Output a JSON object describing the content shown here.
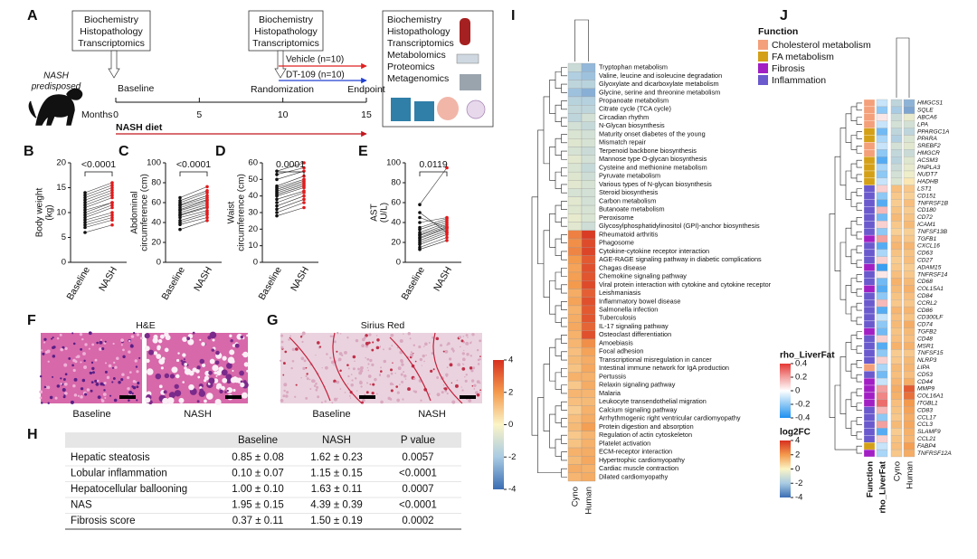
{
  "panel_a": {
    "label": "A",
    "box1": [
      "Biochemistry",
      "Histopathology",
      "Transcriptomics"
    ],
    "box2": [
      "Biochemistry",
      "Histopathology",
      "Transcriptomics"
    ],
    "box3": [
      "Biochemistry",
      "Histopathology",
      "Transcriptomics",
      "Metabolomics",
      "Proteomics",
      "Metagenomics"
    ],
    "subject": [
      "NASH",
      "predisposed"
    ],
    "baseline": "Baseline",
    "randomization": "Randomization",
    "endpoint": "Endpoint",
    "vehicle": {
      "text": "Vehicle (n=10)",
      "color": "#e02020"
    },
    "dt109": {
      "text": "DT-109 (n=10)",
      "color": "#2040d0"
    },
    "timeline": {
      "label": "Months",
      "lim": [
        0,
        15
      ],
      "ticks": [
        0,
        5,
        10,
        15
      ]
    },
    "diet": {
      "text": "NASH diet",
      "color": "#c0181e"
    }
  },
  "paired_colors": [
    "#111111",
    "#e31a1c"
  ],
  "paired_panels": [
    {
      "label": "B",
      "ylabel": [
        "Body weight",
        "(kg)"
      ],
      "ylim": [
        0,
        20
      ],
      "yticks": [
        0,
        5,
        10,
        15,
        20
      ],
      "groups": [
        "Baseline",
        "NASH"
      ],
      "p": "<0.0001",
      "baseline": [
        6,
        7,
        7.5,
        8,
        8.5,
        9,
        9.5,
        10,
        10.5,
        11,
        11.5,
        12,
        12.5,
        13,
        13.5,
        14
      ],
      "nash": [
        7.5,
        8.5,
        9,
        9.5,
        10,
        11,
        11.5,
        12,
        12,
        13,
        13.5,
        14,
        14.5,
        15,
        15.5,
        16
      ]
    },
    {
      "label": "C",
      "ylabel": [
        "Abdominal",
        "circumference (cm)"
      ],
      "ylim": [
        0,
        100
      ],
      "yticks": [
        0,
        20,
        40,
        60,
        80,
        100
      ],
      "groups": [
        "Baseline",
        "NASH"
      ],
      "p": "<0.0001",
      "baseline": [
        33,
        38,
        40,
        42,
        45,
        47,
        48,
        50,
        52,
        53,
        55,
        57,
        58,
        60,
        62,
        65
      ],
      "nash": [
        42,
        45,
        48,
        50,
        52,
        55,
        56,
        58,
        60,
        62,
        63,
        65,
        67,
        70,
        72,
        76
      ]
    },
    {
      "label": "D",
      "ylabel": [
        "Waist",
        "circumference (cm)"
      ],
      "ylim": [
        0,
        60
      ],
      "yticks": [
        0,
        10,
        20,
        30,
        40,
        50,
        60
      ],
      "groups": [
        "Baseline",
        "NASH"
      ],
      "p": "0.0001",
      "baseline": [
        28,
        30,
        32,
        34,
        36,
        38,
        40,
        41,
        42,
        43,
        44,
        45,
        46,
        50,
        53,
        55
      ],
      "nash": [
        33,
        36,
        38,
        40,
        42,
        43,
        45,
        46,
        47,
        48,
        49,
        50,
        52,
        55,
        57,
        60
      ]
    },
    {
      "label": "E",
      "ylabel": [
        "AST",
        "(U/L)"
      ],
      "ylim": [
        0,
        100
      ],
      "yticks": [
        0,
        20,
        40,
        60,
        80,
        100
      ],
      "groups": [
        "Baseline",
        "NASH"
      ],
      "p": "0.0119",
      "baseline": [
        13,
        15,
        18,
        20,
        22,
        24,
        25,
        27,
        28,
        30,
        33,
        35,
        40,
        45,
        50,
        58
      ],
      "nash": [
        22,
        25,
        28,
        30,
        32,
        34,
        35,
        36,
        38,
        40,
        42,
        44,
        45,
        35,
        30,
        95
      ]
    }
  ],
  "histology": [
    {
      "label": "F",
      "stain": "H&E",
      "images": [
        "Baseline",
        "NASH"
      ]
    },
    {
      "label": "G",
      "stain": "Sirius Red",
      "images": [
        "Baseline",
        "NASH"
      ]
    }
  ],
  "table": {
    "label": "H",
    "headers": [
      "Baseline",
      "NASH",
      "P value"
    ],
    "rows": [
      [
        "Hepatic steatosis",
        "0.85 ± 0.08",
        "1.62 ± 0.23",
        "0.0057"
      ],
      [
        "Lobular inflammation",
        "0.10 ± 0.07",
        "1.15 ± 0.15",
        "<0.0001"
      ],
      [
        "Hepatocellular ballooning",
        "1.00 ± 0.10",
        "1.63 ± 0.11",
        "0.0007"
      ],
      [
        "NAS",
        "1.95 ± 0.15",
        "4.39 ± 0.39",
        "<0.0001"
      ],
      [
        "Fibrosis score",
        "0.37 ± 0.11",
        "1.50 ± 0.19",
        "0.0002"
      ]
    ]
  },
  "panel_i": {
    "label": "I",
    "pathways": [
      "Tryptophan metabolism",
      "Valine, leucine and isoleucine degradation",
      "Glyoxylate and dicarboxylate metabolism",
      "Glycine, serine and threonine metabolism",
      "Propanoate metabolism",
      "Citrate cycle (TCA cycle)",
      "Circadian rhythm",
      "N-Glycan biosynthesis",
      "Maturity onset diabetes of the young",
      "Mismatch repair",
      "Terpenoid backbone biosynthesis",
      "Mannose type O-glycan biosynthesis",
      "Cysteine and methionine metabolism",
      "Pyruvate metabolism",
      "Various types of N-glycan biosynthesis",
      "Steroid biosynthesis",
      "Carbon metabolism",
      "Butanoate metabolism",
      "Peroxisome",
      "Glycosylphosphatidylinositol (GPI)-anchor biosynthesis",
      "Rheumatoid arthritis",
      "Phagosome",
      "Cytokine-cytokine receptor interaction",
      "AGE-RAGE signaling pathway in diabetic complications",
      "Chagas disease",
      "Chemokine signaling pathway",
      "Viral protein interaction with cytokine and cytokine receptor",
      "Leishmaniasis",
      "Inflammatory bowel disease",
      "Salmonella infection",
      "Tuberculosis",
      "IL-17 signaling pathway",
      "Osteoclast differentiation",
      "Amoebiasis",
      "Focal adhesion",
      "Transcriptional misregulation in cancer",
      "Intestinal immune network for IgA production",
      "Pertussis",
      "Relaxin signaling pathway",
      "Malaria",
      "Leukocyte transendothelial migration",
      "Calcium signaling pathway",
      "Arrhythmogenic right ventricular cardiomyopathy",
      "Protein digestion and absorption",
      "Regulation of actin cytoskeleton",
      "Platelet activation",
      "ECM-receptor interaction",
      "Hypertrophic cardiomyopathy",
      "Cardiac muscle contraction",
      "Dilated cardiomyopathy"
    ],
    "series": [
      {
        "name": "Cyno",
        "values": [
          -1.2,
          -1.8,
          -1.5,
          -2.2,
          -1.6,
          -1.4,
          -1.5,
          -1.0,
          -0.8,
          -0.7,
          -0.9,
          -0.6,
          -0.8,
          -0.7,
          -0.6,
          -0.9,
          -0.6,
          -0.7,
          -0.5,
          -0.6,
          2.5,
          2.2,
          2.4,
          2.0,
          1.8,
          1.9,
          2.0,
          1.6,
          1.8,
          1.5,
          1.6,
          1.7,
          1.5,
          1.4,
          1.2,
          1.3,
          1.1,
          1.5,
          1.0,
          1.4,
          1.2,
          0.9,
          1.2,
          1.3,
          1.0,
          1.1,
          1.5,
          1.3,
          1.6,
          1.4
        ]
      },
      {
        "name": "Human",
        "values": [
          -2.4,
          -2.2,
          -1.6,
          -2.6,
          -1.7,
          -1.5,
          -1.0,
          -1.3,
          -1.0,
          -0.9,
          -1.2,
          -1.0,
          -1.3,
          -1.1,
          -0.9,
          -1.0,
          -1.0,
          -0.9,
          -0.8,
          -1.1,
          3.8,
          3.5,
          3.6,
          3.2,
          3.4,
          3.3,
          3.5,
          3.1,
          3.4,
          3.2,
          3.3,
          3.0,
          3.4,
          2.2,
          1.8,
          1.6,
          1.7,
          1.5,
          1.6,
          1.4,
          1.3,
          1.5,
          1.6,
          1.9,
          1.4,
          1.5,
          1.6,
          1.7,
          1.5,
          1.6
        ]
      }
    ],
    "colorbar": {
      "lim": [
        -4,
        4
      ],
      "ticks": [
        4,
        2,
        0,
        -2,
        -4
      ],
      "colors": [
        "#3a6db3",
        "#a9cbe3",
        "#fbf4c6",
        "#f49a4d",
        "#d7301f"
      ]
    }
  },
  "panel_j": {
    "label": "J",
    "function_title": "Function",
    "functions": [
      {
        "name": "Cholesterol metabolism",
        "color": "#f4a07a"
      },
      {
        "name": "FA metabolism",
        "color": "#d4a017"
      },
      {
        "name": "Fibrosis",
        "color": "#a21fc4"
      },
      {
        "name": "Inflammation",
        "color": "#6a5acd"
      }
    ],
    "genes": [
      "HMGCS1",
      "SQLE",
      "ABCA6",
      "LPA",
      "PPARGC1A",
      "PPARA",
      "SREBF2",
      "HMGCR",
      "ACSM3",
      "PNPLA3",
      "NUDT7",
      "HADHB",
      "LST1",
      "CD151",
      "TNFRSF1B",
      "CD180",
      "CD72",
      "ICAM1",
      "TNFSF13B",
      "TGFB1",
      "CXCL16",
      "CD63",
      "CD27",
      "ADAM15",
      "TNFRSF14",
      "CD68",
      "COL15A1",
      "CD84",
      "CCRL2",
      "CD86",
      "CD300LF",
      "CD74",
      "TGFB2",
      "CD48",
      "MSR1",
      "TNFSF15",
      "NLRP3",
      "LIPA",
      "CD53",
      "CD44",
      "MMP9",
      "COL16A1",
      "ITGBL1",
      "CD83",
      "CCL17",
      "CCL3",
      "SLAMF9",
      "CCL21",
      "FABP4",
      "TNFRSF12A"
    ],
    "function": [
      0,
      0,
      0,
      0,
      1,
      1,
      0,
      0,
      1,
      1,
      1,
      1,
      3,
      3,
      3,
      3,
      3,
      3,
      3,
      2,
      3,
      3,
      3,
      2,
      3,
      3,
      2,
      3,
      3,
      3,
      3,
      3,
      2,
      3,
      3,
      3,
      3,
      0,
      3,
      2,
      2,
      2,
      2,
      3,
      3,
      3,
      3,
      3,
      1,
      2
    ],
    "columns": [
      "Function",
      "rho_LiverFat",
      "Cyno",
      "Human"
    ],
    "rho": [
      -0.1,
      -0.2,
      0.05,
      -0.1,
      -0.25,
      -0.15,
      -0.1,
      -0.2,
      -0.3,
      -0.15,
      -0.2,
      -0.1,
      0.1,
      -0.2,
      -0.3,
      0.15,
      -0.25,
      0.1,
      -0.2,
      0.2,
      -0.3,
      -0.15,
      0.1,
      -0.35,
      0.05,
      -0.25,
      -0.3,
      -0.2,
      0.15,
      -0.3,
      -0.1,
      -0.2,
      -0.25,
      0.1,
      -0.3,
      -0.2,
      0.1,
      -0.15,
      -0.25,
      -0.1,
      0.2,
      0.25,
      0.3,
      0.15,
      -0.2,
      0.2,
      -0.3,
      0.1,
      -0.1,
      -0.15
    ],
    "cyno": [
      -1.5,
      -2,
      -1.2,
      -1,
      -1.5,
      -1.8,
      -1,
      -1.4,
      -1.6,
      -1.2,
      -1,
      -0.8,
      1.2,
      1.0,
      0.9,
      1.1,
      1.3,
      1.0,
      0.8,
      1.2,
      1.4,
      1.1,
      0.9,
      1.0,
      1.2,
      1.5,
      1.3,
      1.1,
      1.0,
      1.4,
      1.2,
      1.3,
      1.1,
      1.2,
      1.5,
      0.9,
      1.0,
      1.3,
      1.2,
      1.4,
      1.6,
      1.5,
      1.2,
      1.1,
      1.0,
      1.3,
      0.9,
      1.1,
      1.2,
      1.0
    ],
    "human": [
      -2.5,
      -2.8,
      -0.5,
      -1,
      -1.5,
      -0.8,
      -0.6,
      -1.2,
      -0.7,
      -0.5,
      -0.3,
      0.3,
      1.0,
      0.8,
      1.2,
      0.9,
      1.1,
      1.3,
      0.8,
      1.0,
      1.4,
      1.1,
      1.2,
      0.9,
      1.0,
      1.3,
      1.5,
      1.2,
      1.0,
      1.4,
      1.1,
      1.6,
      1.3,
      1.2,
      1.5,
      1.0,
      1.3,
      1.4,
      1.2,
      1.6,
      3.2,
      2.8,
      2.0,
      1.8,
      1.6,
      1.7,
      1.5,
      1.4,
      1.9,
      1.6
    ],
    "rho_bar": {
      "title": "rho_LiverFat",
      "lim": [
        -0.4,
        0.4
      ],
      "ticks": [
        0.4,
        0.2,
        0,
        -0.2,
        -0.4
      ],
      "colors": [
        "#1e90f0",
        "#8ec8f5",
        "#ffffff",
        "#f3a0a0",
        "#e53935"
      ]
    },
    "fc_bar": {
      "title": "log2FC",
      "lim": [
        -4,
        4
      ],
      "ticks": [
        4,
        2,
        0,
        -2,
        -4
      ],
      "colors": [
        "#3a6db3",
        "#a9cbe3",
        "#fbf4c6",
        "#f49a4d",
        "#d7301f"
      ]
    }
  }
}
